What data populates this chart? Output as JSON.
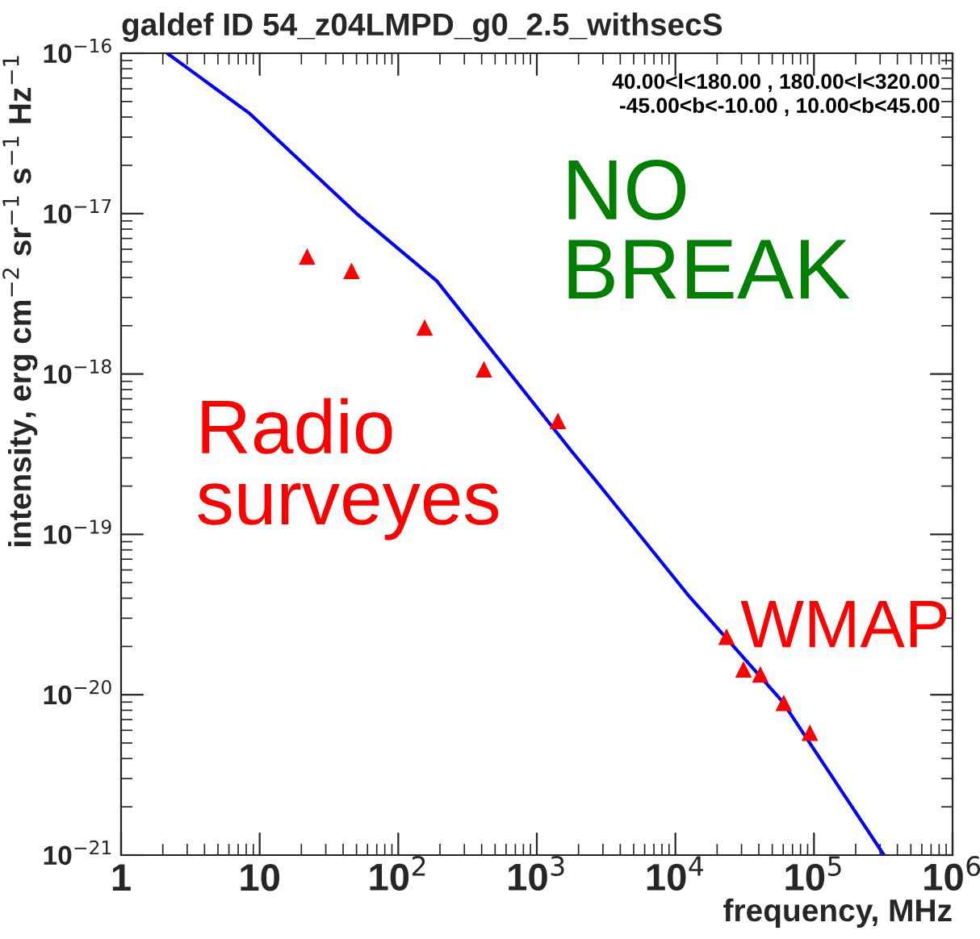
{
  "chart_data": {
    "type": "scatter",
    "title": "galdef ID 54_z04LMPD_g0_2.5_withsecS",
    "xlabel": "frequency, MHz",
    "ylabel": "intensity, erg cm$^{−2}$ sr$^{−1}$ s$^{−1}$ Hz$^{−1}$",
    "log": "xy",
    "grid": false,
    "legend": false,
    "xlim": [
      1,
      1000000
    ],
    "ylim": [
      1e-21,
      1e-16
    ],
    "xticks": [
      1,
      10,
      {
        "value": 100,
        "label": "10$^{2}$"
      },
      {
        "value": 1000,
        "label": "10$^{3}$"
      },
      {
        "value": 10000,
        "label": "10$^{4}$"
      },
      {
        "value": 100000,
        "label": "10$^{5}$"
      },
      {
        "value": 1000000,
        "label": "10$^{6}$"
      }
    ],
    "yticks": [
      {
        "value": 1e-21,
        "label": "10$^{−21}$"
      },
      {
        "value": 1e-20,
        "label": "10$^{−20}$"
      },
      {
        "value": 1e-19,
        "label": "10$^{−19}$"
      },
      {
        "value": 1e-18,
        "label": "10$^{−18}$"
      },
      {
        "value": 1e-17,
        "label": "10$^{−17}$"
      },
      {
        "value": 1e-16,
        "label": "10$^{−16}$"
      }
    ],
    "series": [
      {
        "type": "line",
        "color": "#0000ff",
        "marker": "none",
        "line_style": "solid",
        "x": [
          2.15,
          8.5,
          50,
          190,
          1780,
          2800,
          12300,
          59000,
          320000
        ],
        "values": [
          1e-16,
          4.2e-17,
          1e-17,
          3.8e-18,
          3.3e-19,
          2.05e-19,
          4.2e-20,
          9.1e-21,
          1e-21
        ]
      },
      {
        "color": "#ff0000",
        "marker": "triangle",
        "x": [
          22,
          46,
          155,
          415,
          1420,
          23400,
          31000,
          41000,
          60500,
          93500
        ],
        "values": [
          5.4e-18,
          4.4e-18,
          1.95e-18,
          1.07e-18,
          5.1e-19,
          2.3e-20,
          1.44e-20,
          1.34e-20,
          8.9e-21,
          5.8e-21
        ]
      }
    ],
    "annotations": [
      "40.00<l<180.00 , 180.00<l<320.00",
      "-45.00<b<-10.00 , 10.00<b<45.00",
      "NO\nBREAK",
      "Radio\nsurveyes",
      "WMAP"
    ]
  }
}
